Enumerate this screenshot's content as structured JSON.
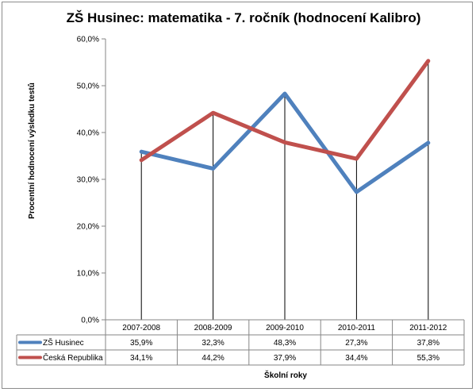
{
  "chart_data": {
    "type": "line",
    "title": "ZŠ Husinec:  matematika - 7. ročník (hodnocení Kalibro)",
    "xlabel": "Školní roky",
    "ylabel": "Procentní hodnocení výsledku testů",
    "categories": [
      "2007-2008",
      "2008-2009",
      "2009-2010",
      "2010-2011",
      "2011-2012"
    ],
    "ylim": [
      0,
      60
    ],
    "yticks": [
      "0,0%",
      "10,0%",
      "20,0%",
      "30,0%",
      "40,0%",
      "50,0%",
      "60,0%"
    ],
    "grid": false,
    "legend": "data-table",
    "series": [
      {
        "name": "ZŠ Husinec",
        "color": "#4f81bd",
        "values": [
          35.9,
          32.3,
          48.3,
          27.3,
          37.8
        ],
        "labels": [
          "35,9%",
          "32,3%",
          "48,3%",
          "27,3%",
          "37,8%"
        ]
      },
      {
        "name": "Česká Republika",
        "color": "#c0504d",
        "values": [
          34.1,
          44.2,
          37.9,
          34.4,
          55.3
        ],
        "labels": [
          "34,1%",
          "44,2%",
          "37,9%",
          "34,4%",
          "55,3%"
        ]
      }
    ]
  }
}
